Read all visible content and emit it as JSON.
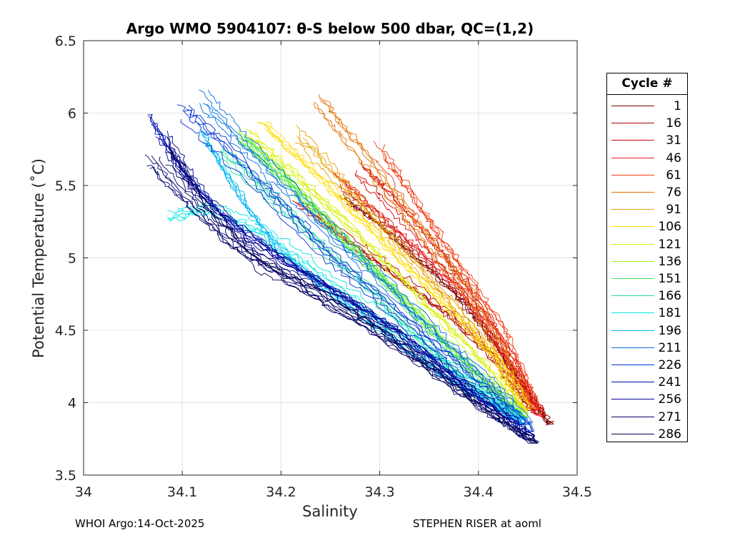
{
  "chart_data": {
    "type": "line",
    "title": "Argo WMO 5904107: θ-S below 500 dbar,  QC=(1,2)",
    "xlabel": "Salinity",
    "ylabel": "Potential Temperature (˚C)",
    "xlim": [
      34.0,
      34.5
    ],
    "ylim": [
      3.5,
      6.5
    ],
    "xticks": [
      "34",
      "34.1",
      "34.2",
      "34.3",
      "34.4",
      "34.5"
    ],
    "yticks": [
      "3.5",
      "4",
      "4.5",
      "5",
      "5.5",
      "6",
      "6.5"
    ],
    "grid": true,
    "legend_title": "Cycle #",
    "legend_position": "right",
    "legend": [
      {
        "label": "1",
        "color": "#800000"
      },
      {
        "label": "16",
        "color": "#b00000"
      },
      {
        "label": "31",
        "color": "#d50000"
      },
      {
        "label": "46",
        "color": "#e41a1a"
      },
      {
        "label": "61",
        "color": "#ef3b10"
      },
      {
        "label": "76",
        "color": "#e07000"
      },
      {
        "label": "91",
        "color": "#e8a000"
      },
      {
        "label": "106",
        "color": "#ffdd00"
      },
      {
        "label": "121",
        "color": "#d8f000"
      },
      {
        "label": "136",
        "color": "#a0ef20"
      },
      {
        "label": "151",
        "color": "#40e860"
      },
      {
        "label": "166",
        "color": "#20e0a0"
      },
      {
        "label": "181",
        "color": "#00e8e0"
      },
      {
        "label": "196",
        "color": "#00b8f0"
      },
      {
        "label": "211",
        "color": "#0070e0"
      },
      {
        "label": "226",
        "color": "#0030d8"
      },
      {
        "label": "241",
        "color": "#0010b0"
      },
      {
        "label": "256",
        "color": "#000090"
      },
      {
        "label": "271",
        "color": "#000070"
      },
      {
        "label": "286",
        "color": "#000055"
      }
    ],
    "series": [
      {
        "name": "1",
        "color": "#800000",
        "x": [
          34.26,
          34.29,
          34.33,
          34.37,
          34.4,
          34.43,
          34.455,
          34.47
        ],
        "y": [
          5.45,
          5.3,
          5.05,
          4.8,
          4.55,
          4.25,
          4.0,
          3.85
        ]
      },
      {
        "name": "16",
        "color": "#b00000",
        "x": [
          34.22,
          34.27,
          34.32,
          34.37,
          34.41,
          34.44,
          34.46
        ],
        "y": [
          5.35,
          5.1,
          4.85,
          4.6,
          4.35,
          4.1,
          3.92
        ]
      },
      {
        "name": "31",
        "color": "#d50000",
        "x": [
          34.28,
          34.31,
          34.35,
          34.38,
          34.41,
          34.44,
          34.46
        ],
        "y": [
          5.6,
          5.4,
          5.1,
          4.85,
          4.55,
          4.2,
          3.95
        ]
      },
      {
        "name": "46",
        "color": "#e41a1a",
        "x": [
          34.26,
          34.3,
          34.34,
          34.38,
          34.415,
          34.445,
          34.465
        ],
        "y": [
          5.55,
          5.3,
          5.05,
          4.8,
          4.5,
          4.15,
          3.9
        ]
      },
      {
        "name": "61",
        "color": "#ef3b10",
        "x": [
          34.3,
          34.33,
          34.36,
          34.39,
          34.42,
          34.44,
          34.46
        ],
        "y": [
          5.75,
          5.45,
          5.15,
          4.85,
          4.55,
          4.25,
          3.95
        ]
      },
      {
        "name": "76",
        "color": "#e07000",
        "x": [
          34.24,
          34.27,
          34.31,
          34.35,
          34.39,
          34.42,
          34.45
        ],
        "y": [
          6.05,
          5.8,
          5.45,
          5.1,
          4.75,
          4.4,
          4.0
        ]
      },
      {
        "name": "91",
        "color": "#e8a000",
        "x": [
          34.22,
          34.26,
          34.3,
          34.34,
          34.38,
          34.42,
          34.45
        ],
        "y": [
          5.85,
          5.55,
          5.25,
          4.95,
          4.65,
          4.3,
          3.95
        ]
      },
      {
        "name": "106",
        "color": "#ffdd00",
        "x": [
          34.18,
          34.22,
          34.27,
          34.32,
          34.37,
          34.42,
          34.45
        ],
        "y": [
          5.95,
          5.7,
          5.35,
          5.0,
          4.65,
          4.3,
          3.95
        ]
      },
      {
        "name": "121",
        "color": "#d8f000",
        "x": [
          34.17,
          34.21,
          34.26,
          34.31,
          34.36,
          34.41,
          34.45
        ],
        "y": [
          5.85,
          5.6,
          5.3,
          4.95,
          4.6,
          4.25,
          3.92
        ]
      },
      {
        "name": "136",
        "color": "#a0ef20",
        "x": [
          34.16,
          34.2,
          34.25,
          34.3,
          34.35,
          34.4,
          34.45
        ],
        "y": [
          5.85,
          5.6,
          5.25,
          4.9,
          4.55,
          4.2,
          3.9
        ]
      },
      {
        "name": "151",
        "color": "#40e860",
        "x": [
          34.16,
          34.2,
          34.25,
          34.3,
          34.35,
          34.4,
          34.445
        ],
        "y": [
          5.8,
          5.55,
          5.2,
          4.85,
          4.5,
          4.15,
          3.9
        ]
      },
      {
        "name": "166",
        "color": "#20e0a0",
        "x": [
          34.14,
          34.19,
          34.24,
          34.29,
          34.34,
          34.39,
          34.445
        ],
        "y": [
          5.75,
          5.45,
          5.1,
          4.8,
          4.45,
          4.15,
          3.88
        ]
      },
      {
        "name": "181",
        "color": "#00e8e0",
        "x": [
          34.09,
          34.13,
          34.18,
          34.23,
          34.29,
          34.35,
          34.4,
          34.445
        ],
        "y": [
          5.3,
          5.35,
          5.2,
          4.95,
          4.65,
          4.35,
          4.1,
          3.88
        ]
      },
      {
        "name": "196",
        "color": "#00b8f0",
        "x": [
          34.12,
          34.15,
          34.19,
          34.24,
          34.3,
          34.36,
          34.41,
          34.445
        ],
        "y": [
          5.85,
          5.5,
          5.1,
          4.8,
          4.5,
          4.2,
          4.0,
          3.85
        ]
      },
      {
        "name": "211",
        "color": "#0070e0",
        "x": [
          34.12,
          34.16,
          34.21,
          34.26,
          34.31,
          34.36,
          34.41,
          34.45
        ],
        "y": [
          6.1,
          5.8,
          5.45,
          5.1,
          4.8,
          4.45,
          4.15,
          3.85
        ]
      },
      {
        "name": "226",
        "color": "#0030d8",
        "x": [
          34.1,
          34.14,
          34.19,
          34.24,
          34.3,
          34.36,
          34.41,
          34.455
        ],
        "y": [
          6.0,
          5.75,
          5.4,
          5.05,
          4.7,
          4.35,
          4.05,
          3.8
        ]
      },
      {
        "name": "241",
        "color": "#0010b0",
        "x": [
          34.07,
          34.1,
          34.14,
          34.2,
          34.26,
          34.33,
          34.39,
          34.45
        ],
        "y": [
          5.95,
          5.6,
          5.3,
          5.0,
          4.75,
          4.45,
          4.1,
          3.78
        ]
      },
      {
        "name": "256",
        "color": "#000090",
        "x": [
          34.08,
          34.11,
          34.16,
          34.22,
          34.28,
          34.34,
          34.4,
          34.455
        ],
        "y": [
          5.85,
          5.5,
          5.15,
          4.9,
          4.65,
          4.35,
          4.05,
          3.75
        ]
      },
      {
        "name": "271",
        "color": "#000070",
        "x": [
          34.07,
          34.11,
          34.16,
          34.22,
          34.28,
          34.35,
          34.41,
          34.46
        ],
        "y": [
          5.65,
          5.35,
          5.05,
          4.8,
          4.55,
          4.25,
          3.95,
          3.72
        ]
      },
      {
        "name": "286",
        "color": "#000055",
        "x": [
          34.09,
          34.13,
          34.18,
          34.24,
          34.3,
          34.36,
          34.42,
          34.46
        ],
        "y": [
          5.7,
          5.3,
          4.95,
          4.75,
          4.5,
          4.2,
          3.9,
          3.72
        ]
      }
    ]
  },
  "footer": {
    "left": "WHOI Argo:14-Oct-2025",
    "right": "STEPHEN RISER at aoml"
  }
}
